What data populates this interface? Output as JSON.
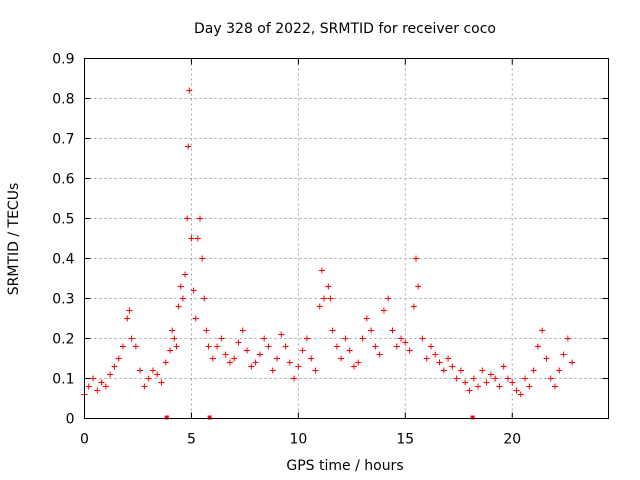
{
  "chart_data": {
    "type": "scatter",
    "title": "Day 328 of 2022, SRMTID for receiver coco",
    "xlabel": "GPS time / hours",
    "ylabel": "SRMTID / TECUs",
    "xlim": [
      0,
      24.5
    ],
    "ylim": [
      0,
      0.9
    ],
    "x_ticks": [
      0,
      5,
      10,
      15,
      20
    ],
    "x_tick_labels": [
      "0",
      "5",
      "10",
      "15",
      "20"
    ],
    "y_ticks": [
      0,
      0.1,
      0.2,
      0.3,
      0.4,
      0.5,
      0.6,
      0.7,
      0.8,
      0.9
    ],
    "y_tick_labels": [
      "0",
      "0.1",
      "0.2",
      "0.3",
      "0.4",
      "0.5",
      "0.6",
      "0.7",
      "0.8",
      "0.9"
    ],
    "grid": true,
    "marker": "plus",
    "color": "#ff0000",
    "x": [
      0.0,
      0.2,
      0.4,
      0.6,
      0.8,
      1.0,
      1.2,
      1.4,
      1.6,
      1.8,
      2.0,
      2.1,
      2.2,
      2.4,
      2.6,
      2.8,
      3.0,
      3.2,
      3.4,
      3.6,
      3.8,
      4.0,
      4.1,
      4.2,
      4.3,
      4.4,
      4.5,
      4.6,
      4.7,
      4.8,
      4.85,
      4.9,
      5.0,
      5.1,
      5.2,
      5.3,
      5.4,
      5.5,
      5.6,
      5.7,
      5.8,
      6.0,
      6.2,
      6.4,
      6.6,
      6.8,
      7.0,
      7.2,
      7.4,
      7.6,
      7.8,
      8.0,
      8.2,
      8.4,
      8.6,
      8.8,
      9.0,
      9.2,
      9.4,
      9.6,
      9.8,
      10.0,
      10.2,
      10.4,
      10.6,
      10.8,
      11.0,
      11.1,
      11.2,
      11.4,
      11.5,
      11.6,
      11.8,
      12.0,
      12.2,
      12.4,
      12.6,
      12.8,
      13.0,
      13.2,
      13.4,
      13.6,
      13.8,
      14.0,
      14.2,
      14.4,
      14.6,
      14.8,
      15.0,
      15.2,
      15.4,
      15.5,
      15.6,
      15.8,
      16.0,
      16.2,
      16.4,
      16.6,
      16.8,
      17.0,
      17.2,
      17.4,
      17.6,
      17.8,
      18.0,
      18.2,
      18.4,
      18.6,
      18.8,
      19.0,
      19.2,
      19.4,
      19.6,
      19.8,
      20.0,
      20.2,
      20.4,
      20.6,
      20.8,
      21.0,
      21.2,
      21.4,
      21.6,
      21.8,
      22.0,
      22.2,
      22.4,
      22.6,
      22.8
    ],
    "values": [
      0.06,
      0.08,
      0.1,
      0.07,
      0.09,
      0.08,
      0.11,
      0.13,
      0.15,
      0.18,
      0.25,
      0.27,
      0.2,
      0.18,
      0.12,
      0.08,
      0.1,
      0.12,
      0.11,
      0.09,
      0.14,
      0.17,
      0.22,
      0.2,
      0.18,
      0.28,
      0.33,
      0.3,
      0.36,
      0.5,
      0.68,
      0.82,
      0.45,
      0.32,
      0.25,
      0.45,
      0.5,
      0.4,
      0.3,
      0.22,
      0.18,
      0.15,
      0.18,
      0.2,
      0.16,
      0.14,
      0.15,
      0.19,
      0.22,
      0.17,
      0.13,
      0.14,
      0.16,
      0.2,
      0.18,
      0.12,
      0.15,
      0.21,
      0.18,
      0.14,
      0.1,
      0.13,
      0.17,
      0.2,
      0.15,
      0.12,
      0.28,
      0.37,
      0.3,
      0.33,
      0.3,
      0.22,
      0.18,
      0.15,
      0.2,
      0.17,
      0.13,
      0.14,
      0.2,
      0.25,
      0.22,
      0.18,
      0.16,
      0.27,
      0.3,
      0.22,
      0.18,
      0.2,
      0.19,
      0.17,
      0.28,
      0.4,
      0.33,
      0.2,
      0.15,
      0.18,
      0.16,
      0.14,
      0.12,
      0.15,
      0.13,
      0.1,
      0.12,
      0.09,
      0.07,
      0.1,
      0.08,
      0.12,
      0.09,
      0.11,
      0.1,
      0.08,
      0.13,
      0.1,
      0.09,
      0.07,
      0.06,
      0.1,
      0.08,
      0.12,
      0.18,
      0.22,
      0.15,
      0.1,
      0.08,
      0.12,
      0.16,
      0.2,
      0.14
    ],
    "gap_markers_x": [
      3.85,
      5.85,
      18.15
    ]
  }
}
